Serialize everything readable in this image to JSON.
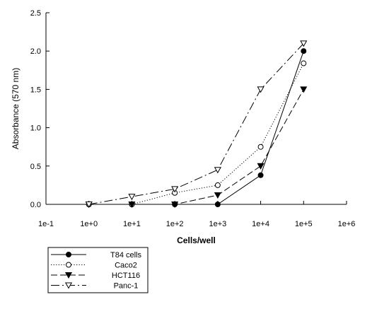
{
  "chart_data": {
    "type": "line",
    "title": "",
    "xlabel": "Cells/well",
    "ylabel": "Absorbance (570 nm)",
    "xscale": "log",
    "xlim": [
      0.1,
      1000000
    ],
    "ylim": [
      0,
      2.5
    ],
    "xticks": [
      "1e-1",
      "1e+0",
      "1e+1",
      "1e+2",
      "1e+3",
      "1e+4",
      "1e+5",
      "1e+6"
    ],
    "yticks": [
      "0.0",
      "0.5",
      "1.0",
      "1.5",
      "2.0",
      "2.5"
    ],
    "grid": false,
    "legend_position": "bottom-left, below plot",
    "series": [
      {
        "name": "T84 cells",
        "marker": "filled-circle",
        "dash": "solid",
        "x": [
          1,
          10,
          100,
          1000,
          10000,
          100000
        ],
        "y": [
          0.0,
          0.0,
          0.0,
          0.0,
          0.38,
          2.0
        ]
      },
      {
        "name": "Caco2",
        "marker": "open-circle",
        "dash": "dotted",
        "x": [
          1,
          10,
          100,
          1000,
          10000,
          100000
        ],
        "y": [
          0.0,
          0.0,
          0.15,
          0.25,
          0.75,
          1.84
        ]
      },
      {
        "name": "HCT116",
        "marker": "filled-triangle-down",
        "dash": "dashed",
        "x": [
          1,
          10,
          100,
          1000,
          10000,
          100000
        ],
        "y": [
          0.0,
          0.0,
          0.0,
          0.12,
          0.5,
          1.5
        ]
      },
      {
        "name": "Panc-1",
        "marker": "open-triangle-down",
        "dash": "dash-dot",
        "x": [
          1,
          10,
          100,
          1000,
          10000,
          100000
        ],
        "y": [
          0.0,
          0.1,
          0.2,
          0.45,
          1.5,
          2.1
        ]
      }
    ]
  }
}
